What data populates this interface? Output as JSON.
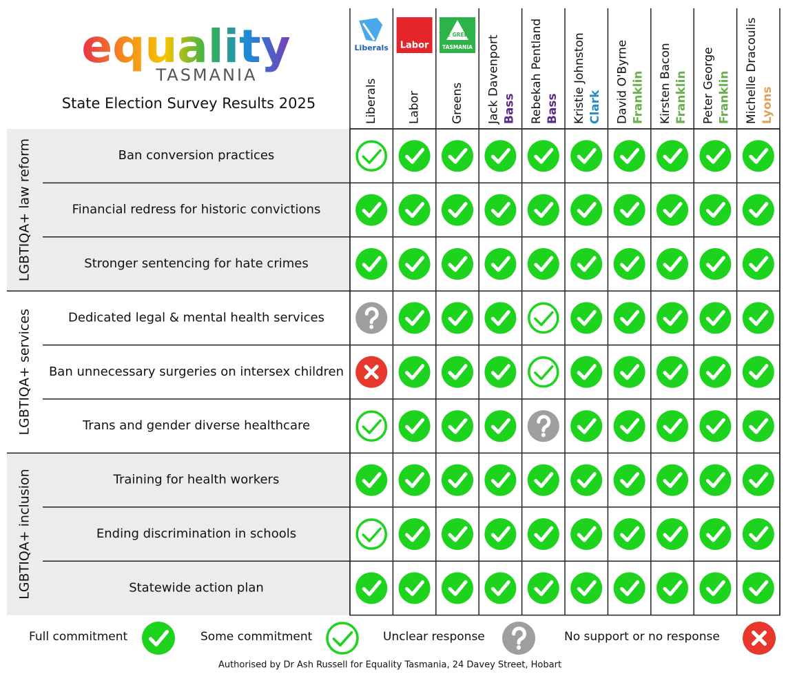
{
  "header": {
    "logo": "equality",
    "logo_sub": "TASMANIA",
    "title": "State Election Survey Results 2025"
  },
  "columns": [
    {
      "name": "Liberals",
      "logo": {
        "lines": [
          "Liberals"
        ],
        "color": "#1f5fb4"
      }
    },
    {
      "name": "Labor",
      "logo": {
        "lines": [
          "Labor"
        ],
        "color": "#e4262b"
      }
    },
    {
      "name": "Greens",
      "logo": {
        "lines": [
          "THE GREENS",
          "TASMANIA"
        ],
        "color": "#2db34a"
      }
    },
    {
      "name": "Jack Davenport",
      "electorate": "Bass",
      "electorate_color": "#5b2a86"
    },
    {
      "name": "Rebekah Pentland",
      "electorate": "Bass",
      "electorate_color": "#5b2a86"
    },
    {
      "name": "Kristie Johnston",
      "electorate": "Clark",
      "electorate_color": "#2a8bc0"
    },
    {
      "name": "David O'Byrne",
      "electorate": "Franklin",
      "electorate_color": "#6ab04c"
    },
    {
      "name": "Kirsten Bacon",
      "electorate": "Franklin",
      "electorate_color": "#6ab04c"
    },
    {
      "name": "Peter George",
      "electorate": "Franklin",
      "electorate_color": "#6ab04c"
    },
    {
      "name": "Michelle Dracoulis",
      "electorate": "Lyons",
      "electorate_color": "#e0a060"
    }
  ],
  "groups": [
    {
      "label": "LGBTIQA+ law reform",
      "rows": [
        {
          "label": "Ban conversion practices",
          "cells": [
            "some",
            "full",
            "full",
            "full",
            "full",
            "full",
            "full",
            "full",
            "full",
            "full"
          ]
        },
        {
          "label": "Financial redress for historic convictions",
          "cells": [
            "full",
            "full",
            "full",
            "full",
            "full",
            "full",
            "full",
            "full",
            "full",
            "full"
          ]
        },
        {
          "label": "Stronger sentencing for hate crimes",
          "cells": [
            "full",
            "full",
            "full",
            "full",
            "full",
            "full",
            "full",
            "full",
            "full",
            "full"
          ]
        }
      ]
    },
    {
      "label": "LGBTIQA+ services",
      "rows": [
        {
          "label": "Dedicated legal & mental health services",
          "cells": [
            "unclear",
            "full",
            "full",
            "full",
            "some",
            "full",
            "full",
            "full",
            "full",
            "full"
          ]
        },
        {
          "label": "Ban unnecessary surgeries on intersex children",
          "cells": [
            "none",
            "full",
            "full",
            "full",
            "some",
            "full",
            "full",
            "full",
            "full",
            "full"
          ]
        },
        {
          "label": "Trans and gender diverse healthcare",
          "cells": [
            "some",
            "full",
            "full",
            "full",
            "unclear",
            "full",
            "full",
            "full",
            "full",
            "full"
          ]
        }
      ]
    },
    {
      "label": "LGBTIQA+ inclusion",
      "rows": [
        {
          "label": "Training for health workers",
          "cells": [
            "full",
            "full",
            "full",
            "full",
            "full",
            "full",
            "full",
            "full",
            "full",
            "full"
          ]
        },
        {
          "label": "Ending discrimination in schools",
          "cells": [
            "some",
            "full",
            "full",
            "full",
            "full",
            "full",
            "full",
            "full",
            "full",
            "full"
          ]
        },
        {
          "label": "Statewide action plan",
          "cells": [
            "full",
            "full",
            "full",
            "full",
            "full",
            "full",
            "full",
            "full",
            "full",
            "full"
          ]
        }
      ]
    }
  ],
  "legend": [
    {
      "label": "Full commitment",
      "status": "full"
    },
    {
      "label": "Some commitment",
      "status": "some"
    },
    {
      "label": "Unclear response",
      "status": "unclear"
    },
    {
      "label": "No support or no response",
      "status": "none"
    }
  ],
  "footer": "Authorised by Dr Ash Russell for Equality Tasmania, 24 Davey Street, Hobart"
}
